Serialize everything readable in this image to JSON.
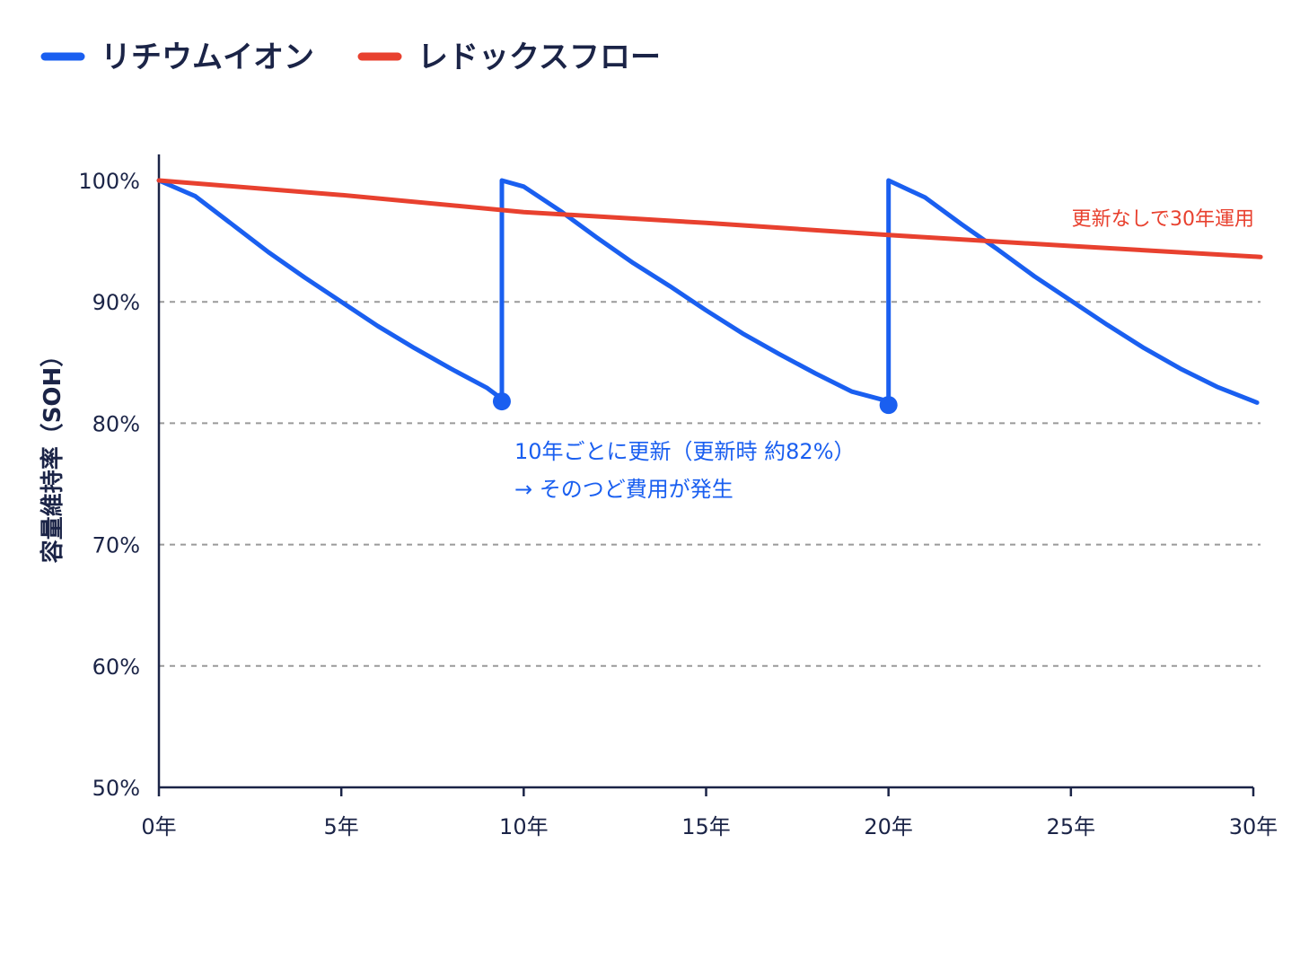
{
  "chart_data": {
    "type": "line",
    "ylabel": "容量維持率（SOH）",
    "xlabel": "",
    "xlim": [
      0,
      30
    ],
    "ylim": [
      50,
      100
    ],
    "x_ticks": [
      {
        "value": 0,
        "label": "0年"
      },
      {
        "value": 5,
        "label": "5年"
      },
      {
        "value": 10,
        "label": "10年"
      },
      {
        "value": 15,
        "label": "15年"
      },
      {
        "value": 20,
        "label": "20年"
      },
      {
        "value": 25,
        "label": "25年"
      },
      {
        "value": 30,
        "label": "30年"
      }
    ],
    "y_ticks": [
      {
        "value": 100,
        "label": "100%"
      },
      {
        "value": 90,
        "label": "90%"
      },
      {
        "value": 80,
        "label": "80%"
      },
      {
        "value": 70,
        "label": "70%"
      },
      {
        "value": 60,
        "label": "60%"
      },
      {
        "value": 50,
        "label": "50%"
      }
    ],
    "grid": "horizontal dashed at 60, 70, 80, 90",
    "legend_position": "top-left",
    "series": [
      {
        "name": "リチウムイオン",
        "color": "#1a5ff0",
        "points": [
          [
            0,
            100
          ],
          [
            1,
            98.7
          ],
          [
            2,
            96.4
          ],
          [
            3,
            94.1
          ],
          [
            4,
            92.0
          ],
          [
            5,
            90.0
          ],
          [
            6,
            88.0
          ],
          [
            7,
            86.2
          ],
          [
            8,
            84.5
          ],
          [
            9,
            82.9
          ],
          [
            9.4,
            82.0
          ],
          [
            9.4,
            100
          ],
          [
            10,
            99.5
          ],
          [
            11,
            97.5
          ],
          [
            12,
            95.3
          ],
          [
            13,
            93.2
          ],
          [
            14,
            91.3
          ],
          [
            15,
            89.3
          ],
          [
            16,
            87.4
          ],
          [
            17,
            85.7
          ],
          [
            18,
            84.1
          ],
          [
            19,
            82.6
          ],
          [
            20,
            81.8
          ],
          [
            20,
            100
          ],
          [
            21,
            98.6
          ],
          [
            22,
            96.4
          ],
          [
            23,
            94.3
          ],
          [
            24,
            92.1
          ],
          [
            25,
            90.1
          ],
          [
            26,
            88.1
          ],
          [
            27,
            86.2
          ],
          [
            28,
            84.5
          ],
          [
            29,
            83.0
          ],
          [
            30.1,
            81.7
          ]
        ],
        "markers": [
          [
            9.4,
            81.8
          ],
          [
            20,
            81.5
          ]
        ]
      },
      {
        "name": "レドックスフロー",
        "color": "#e8412f",
        "points": [
          [
            0,
            100
          ],
          [
            5,
            98.8
          ],
          [
            10,
            97.4
          ],
          [
            15,
            96.5
          ],
          [
            20,
            95.5
          ],
          [
            25,
            94.6
          ],
          [
            30.2,
            93.7
          ]
        ]
      }
    ],
    "annotations": [
      {
        "text": "10年ごとに更新（更新時 約82%）",
        "color": "#1a5ff0"
      },
      {
        "text": "→ そのつど費用が発生",
        "color": "#1a5ff0"
      },
      {
        "text": "更新なしで30年運用",
        "color": "#e8412f"
      }
    ]
  }
}
